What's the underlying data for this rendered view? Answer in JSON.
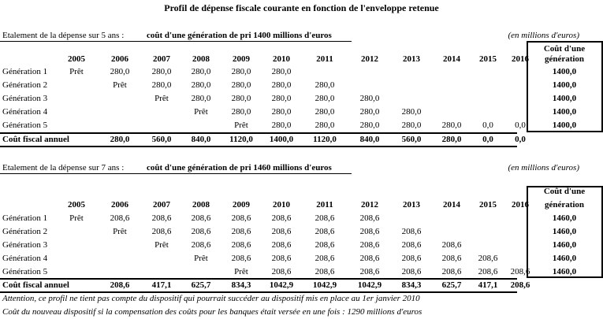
{
  "title": "Profil de dépense fiscale courante en fonction de l'enveloppe retenue",
  "unit_note": "(en millions d'euros)",
  "years": [
    "2005",
    "2006",
    "2007",
    "2008",
    "2009",
    "2010",
    "2011",
    "2012",
    "2013",
    "2014",
    "2015",
    "2016"
  ],
  "cost_header_1": "Coût d'une",
  "cost_header_2": "génération",
  "tables": [
    {
      "label": "Etalement de la dépense sur 5 ans :",
      "subtitle": "coût d'une génération de pri 1400 millions d'euros",
      "rows": [
        {
          "name": "Génération 1",
          "cells": [
            "Prêt",
            "280,0",
            "280,0",
            "280,0",
            "280,0",
            "280,0",
            "",
            "",
            "",
            "",
            "",
            ""
          ],
          "cost": "1400,0"
        },
        {
          "name": "Génération 2",
          "cells": [
            "",
            "Prêt",
            "280,0",
            "280,0",
            "280,0",
            "280,0",
            "280,0",
            "",
            "",
            "",
            "",
            ""
          ],
          "cost": "1400,0"
        },
        {
          "name": "Génération 3",
          "cells": [
            "",
            "",
            "Prêt",
            "280,0",
            "280,0",
            "280,0",
            "280,0",
            "280,0",
            "",
            "",
            "",
            ""
          ],
          "cost": "1400,0"
        },
        {
          "name": "Génération 4",
          "cells": [
            "",
            "",
            "",
            "Prêt",
            "280,0",
            "280,0",
            "280,0",
            "280,0",
            "280,0",
            "",
            "",
            ""
          ],
          "cost": "1400,0"
        },
        {
          "name": "Génération 5",
          "cells": [
            "",
            "",
            "",
            "",
            "Prêt",
            "280,0",
            "280,0",
            "280,0",
            "280,0",
            "280,0",
            "0,0",
            "0,0"
          ],
          "cost": "1400,0"
        }
      ],
      "total_label": "Coût fiscal annuel",
      "totals": [
        "",
        "280,0",
        "560,0",
        "840,0",
        "1120,0",
        "1400,0",
        "1120,0",
        "840,0",
        "560,0",
        "280,0",
        "0,0",
        "0,0"
      ]
    },
    {
      "label": "Etalement de la dépense sur 7 ans :",
      "subtitle": "coût d'une génération de pri 1460 millions d'euros",
      "rows": [
        {
          "name": "Génération 1",
          "cells": [
            "Prêt",
            "208,6",
            "208,6",
            "208,6",
            "208,6",
            "208,6",
            "208,6",
            "208,6",
            "",
            "",
            "",
            ""
          ],
          "cost": "1460,0"
        },
        {
          "name": "Génération 2",
          "cells": [
            "",
            "Prêt",
            "208,6",
            "208,6",
            "208,6",
            "208,6",
            "208,6",
            "208,6",
            "208,6",
            "",
            "",
            ""
          ],
          "cost": "1460,0"
        },
        {
          "name": "Génération 3",
          "cells": [
            "",
            "",
            "Prêt",
            "208,6",
            "208,6",
            "208,6",
            "208,6",
            "208,6",
            "208,6",
            "208,6",
            "",
            ""
          ],
          "cost": "1460,0"
        },
        {
          "name": "Génération 4",
          "cells": [
            "",
            "",
            "",
            "Prêt",
            "208,6",
            "208,6",
            "208,6",
            "208,6",
            "208,6",
            "208,6",
            "208,6",
            ""
          ],
          "cost": "1460,0"
        },
        {
          "name": "Génération 5",
          "cells": [
            "",
            "",
            "",
            "",
            "Prêt",
            "208,6",
            "208,6",
            "208,6",
            "208,6",
            "208,6",
            "208,6",
            "208,6"
          ],
          "cost": "1460,0"
        }
      ],
      "total_label": "Coût fiscal annuel",
      "totals": [
        "",
        "208,6",
        "417,1",
        "625,7",
        "834,3",
        "1042,9",
        "1042,9",
        "1042,9",
        "834,3",
        "625,7",
        "417,1",
        "208,6"
      ]
    }
  ],
  "notes": [
    "Attention, ce profil ne tient pas compte du dispositif qui pourrait succéder au dispositif mis en place au 1er janvier 2010",
    "Coût du nouveau dispositif si la compensation des coûts pour les banques était versée en une fois : 1290 millions d'euros"
  ]
}
